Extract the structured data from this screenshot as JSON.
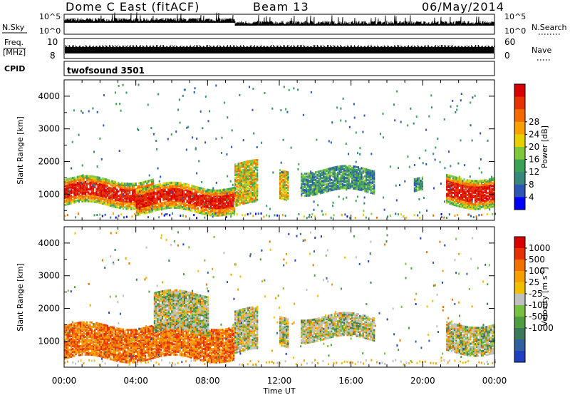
{
  "header": {
    "station": "Dome C East (fitACF)",
    "beam": "Beam 13",
    "date": "06/May/2014"
  },
  "strips": {
    "nsky_label": "N.Sky",
    "nsky_max": "10^5",
    "nsky_min": "10^0",
    "nsearch_label": "N.Search",
    "nsearch_max": "10^5",
    "nsearch_min": "10^0",
    "freq_label_1": "Freq.",
    "freq_label_2": "[MHz]",
    "freq_max": "10",
    "freq_min": "8",
    "nave_label": "Nave",
    "nave_max": "60",
    "nave_min": "0",
    "cpid_label": "CPID",
    "cpid_value": "twofsound 3501"
  },
  "chart_data": [
    {
      "type": "heatmap",
      "name": "power",
      "ylabel": "Slant Range [km]",
      "xlabel": "Time UT",
      "ylim": [
        200,
        4500
      ],
      "yticks": [
        "1000",
        "2000",
        "3000",
        "4000"
      ],
      "xticks": [
        "00:00",
        "04:00",
        "08:00",
        "12:00",
        "16:00",
        "20:00",
        "00:00"
      ],
      "colorbar": {
        "label": "Power [dB]",
        "ticks": [
          "4",
          "8",
          "12",
          "16",
          "20",
          "24",
          "28"
        ],
        "colors": [
          "#0000ff",
          "#2d55b4",
          "#36887a",
          "#3ba155",
          "#7fc83c",
          "#e8d000",
          "#f7a000",
          "#f26a00",
          "#e53300",
          "#d80000"
        ]
      },
      "regions": [
        {
          "t0": 0.0,
          "t1": 5.0,
          "r0": 700,
          "r1": 1500,
          "level": "high"
        },
        {
          "t0": 4.0,
          "t1": 9.5,
          "r0": 500,
          "r1": 1300,
          "level": "high"
        },
        {
          "t0": 9.5,
          "t1": 10.8,
          "r0": 700,
          "r1": 2000,
          "level": "medium"
        },
        {
          "t0": 12.0,
          "t1": 12.5,
          "r0": 900,
          "r1": 1800,
          "level": "medium"
        },
        {
          "t0": 13.2,
          "t1": 17.3,
          "r0": 1100,
          "r1": 1800,
          "level": "low"
        },
        {
          "t0": 19.5,
          "t1": 20.0,
          "r0": 1100,
          "r1": 1500,
          "level": "low"
        },
        {
          "t0": 21.3,
          "t1": 24.0,
          "r0": 700,
          "r1": 1600,
          "level": "high"
        }
      ]
    },
    {
      "type": "heatmap",
      "name": "velocity",
      "ylabel": "Slant Range [km]",
      "xlabel": "Time UT",
      "ylim": [
        200,
        4500
      ],
      "yticks": [
        "1000",
        "2000",
        "3000",
        "4000"
      ],
      "xticks": [
        "00:00",
        "04:00",
        "08:00",
        "12:00",
        "16:00",
        "20:00",
        "00:00"
      ],
      "colorbar": {
        "label": "Velocity [m s-1]",
        "ticks": [
          "1000",
          "500",
          "100",
          "25",
          "-25",
          "-100",
          "-500",
          "-1000"
        ],
        "colors": [
          "#2040c0",
          "#3060a0",
          "#3a7a5a",
          "#4e9e40",
          "#78c040",
          "#c0c0c0",
          "#f0c000",
          "#f5a000",
          "#f07000",
          "#e53000",
          "#d80000"
        ]
      },
      "regions": [
        {
          "t0": 0.0,
          "t1": 9.5,
          "r0": 500,
          "r1": 1500,
          "level": "negative"
        },
        {
          "t0": 5.0,
          "t1": 8.0,
          "r0": 1300,
          "r1": 2500,
          "level": "mixed"
        },
        {
          "t0": 9.5,
          "t1": 10.8,
          "r0": 700,
          "r1": 2000,
          "level": "mixed"
        },
        {
          "t0": 12.0,
          "t1": 12.5,
          "r0": 900,
          "r1": 1800,
          "level": "mixed"
        },
        {
          "t0": 13.2,
          "t1": 17.3,
          "r0": 1100,
          "r1": 1800,
          "level": "mixed"
        },
        {
          "t0": 21.3,
          "t1": 24.0,
          "r0": 700,
          "r1": 1600,
          "level": "mixed"
        }
      ]
    }
  ]
}
